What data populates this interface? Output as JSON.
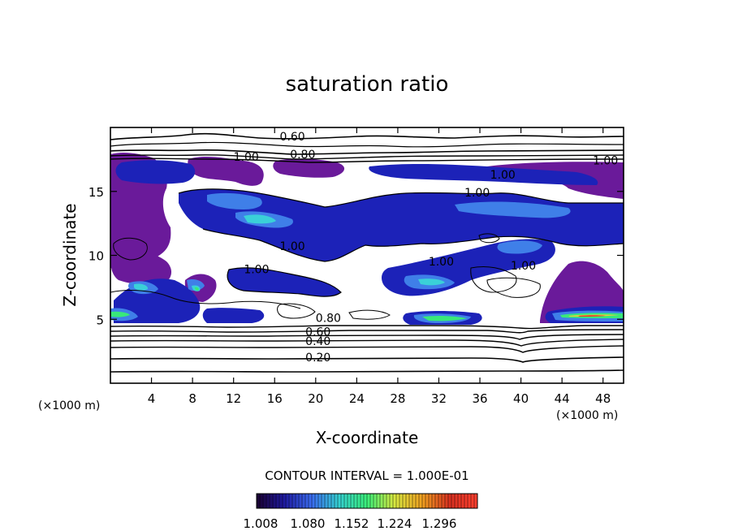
{
  "chart_data": {
    "type": "contour",
    "title": "saturation ratio",
    "xlabel": "X-coordinate",
    "ylabel": "Z-coordinate",
    "x_unit": "(×1000 m)",
    "y_unit": "(×1000 m)",
    "xlim": [
      0,
      50
    ],
    "ylim": [
      0,
      20
    ],
    "x_ticks": [
      4,
      8,
      12,
      16,
      20,
      24,
      28,
      32,
      36,
      40,
      44,
      48
    ],
    "y_ticks": [
      5,
      10,
      15
    ],
    "contour_interval_text": "CONTOUR INTERVAL = 1.000E-01",
    "contour_labels": [
      {
        "text": "0.60",
        "x": 16.5,
        "z": 19.0
      },
      {
        "text": "0.80",
        "x": 17.5,
        "z": 17.6
      },
      {
        "text": "1.00",
        "x": 12.0,
        "z": 17.4
      },
      {
        "text": "1.00",
        "x": 37.0,
        "z": 16.0
      },
      {
        "text": "1.00",
        "x": 47.0,
        "z": 17.1
      },
      {
        "text": "1.00",
        "x": 34.5,
        "z": 14.6
      },
      {
        "text": "1.00",
        "x": 16.5,
        "z": 10.4
      },
      {
        "text": "1.00",
        "x": 13.0,
        "z": 8.6
      },
      {
        "text": "1.00",
        "x": 31.0,
        "z": 9.2
      },
      {
        "text": "1.00",
        "x": 39.0,
        "z": 8.9
      },
      {
        "text": "0.80",
        "x": 20.0,
        "z": 4.8
      },
      {
        "text": "0.60",
        "x": 19.0,
        "z": 3.7
      },
      {
        "text": "0.40",
        "x": 19.0,
        "z": 3.0
      },
      {
        "text": "0.20",
        "x": 19.0,
        "z": 1.7
      }
    ],
    "colorbar": {
      "ticks": [
        "1.008",
        "1.080",
        "1.152",
        "1.224",
        "1.296"
      ],
      "colors": [
        "#1a0030",
        "#1f1aa0",
        "#3a6cf0",
        "#35d1d0",
        "#3aef7a",
        "#d8e840",
        "#f0a020",
        "#d83020",
        "#ff4030"
      ]
    },
    "fill_colors": {
      "supersat_low": "#6a1a9a",
      "level_1": "#1c22b8",
      "level_2": "#3f7fe8",
      "level_3": "#3ad0d8",
      "level_4": "#38e87a",
      "level_5": "#e0d040",
      "level_6": "#e83828"
    }
  }
}
